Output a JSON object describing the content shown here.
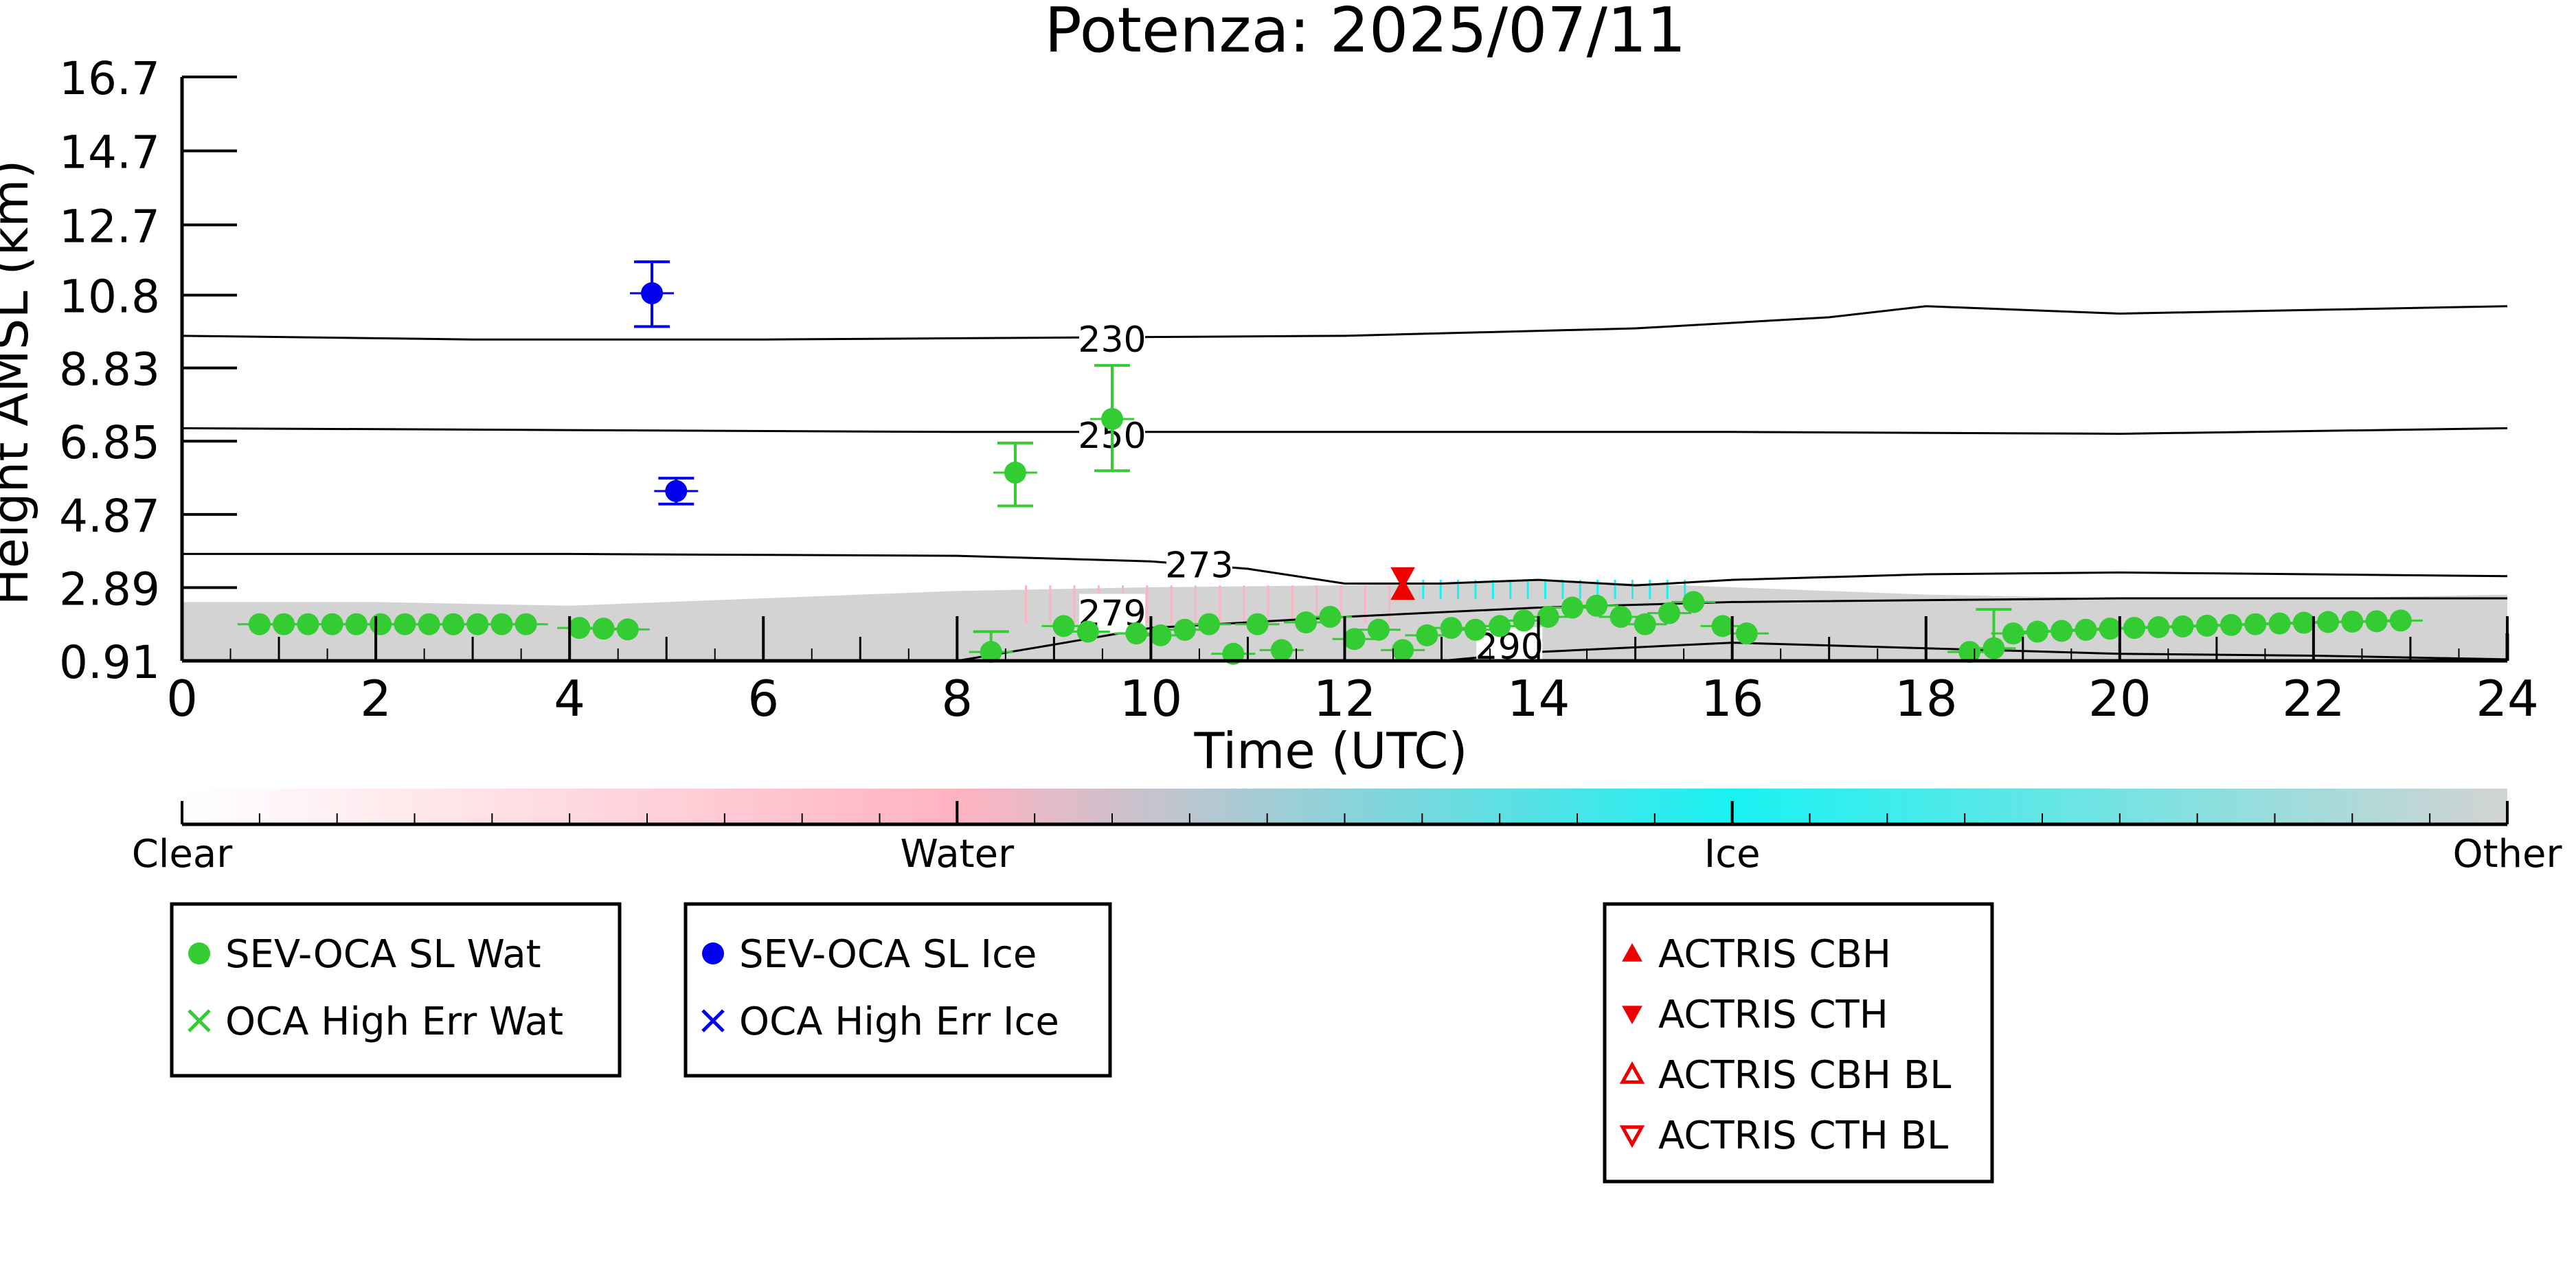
{
  "chart_data": {
    "type": "scatter",
    "title": "Potenza: 2025/07/11",
    "xlabel": "Time (UTC)",
    "ylabel": "Height AMSL (km)",
    "xlim": [
      0,
      24
    ],
    "ylim": [
      0.91,
      16.7
    ],
    "x_ticks": [
      "0",
      "2",
      "4",
      "6",
      "8",
      "10",
      "12",
      "14",
      "16",
      "18",
      "20",
      "22",
      "24"
    ],
    "y_ticks": [
      {
        "value": 0.91,
        "label": "0.91"
      },
      {
        "value": 2.89,
        "label": "2.89"
      },
      {
        "value": 4.87,
        "label": "4.87"
      },
      {
        "value": 6.85,
        "label": "6.85"
      },
      {
        "value": 8.83,
        "label": "8.83"
      },
      {
        "value": 10.8,
        "label": "10.8"
      },
      {
        "value": 12.7,
        "label": "12.7"
      },
      {
        "value": 14.7,
        "label": "14.7"
      },
      {
        "value": 16.7,
        "label": "16.7"
      }
    ],
    "colors": {
      "water": "#33cc33",
      "ice": "#0000ee",
      "actris": "#ee0000",
      "profile": "#d3d3d3",
      "contour": "#000000"
    },
    "contours": [
      {
        "label": "230",
        "label_at": [
          9.6,
          9.6
        ],
        "points": [
          [
            0,
            9.7
          ],
          [
            3,
            9.6
          ],
          [
            6,
            9.6
          ],
          [
            9,
            9.65
          ],
          [
            12,
            9.7
          ],
          [
            15,
            9.9
          ],
          [
            17,
            10.2
          ],
          [
            18,
            10.5
          ],
          [
            20,
            10.3
          ],
          [
            22,
            10.4
          ],
          [
            24,
            10.5
          ]
        ]
      },
      {
        "label": "250",
        "label_at": [
          9.6,
          7.0
        ],
        "points": [
          [
            0,
            7.2
          ],
          [
            4,
            7.15
          ],
          [
            8,
            7.1
          ],
          [
            12,
            7.1
          ],
          [
            16,
            7.1
          ],
          [
            20,
            7.05
          ],
          [
            24,
            7.2
          ]
        ]
      },
      {
        "label": "273",
        "label_at": [
          10.5,
          3.5
        ],
        "points": [
          [
            0,
            3.8
          ],
          [
            4,
            3.8
          ],
          [
            8,
            3.75
          ],
          [
            10,
            3.6
          ],
          [
            11,
            3.4
          ],
          [
            12,
            3.0
          ],
          [
            13,
            3.0
          ],
          [
            14,
            3.1
          ],
          [
            15,
            2.95
          ],
          [
            16,
            3.1
          ],
          [
            18,
            3.25
          ],
          [
            20,
            3.3
          ],
          [
            24,
            3.2
          ]
        ]
      },
      {
        "label": "279",
        "label_at": [
          9.6,
          2.2
        ],
        "points": [
          [
            8,
            0.91
          ],
          [
            9,
            1.35
          ],
          [
            10,
            1.8
          ],
          [
            12,
            2.1
          ],
          [
            14,
            2.35
          ],
          [
            16,
            2.5
          ],
          [
            20,
            2.6
          ],
          [
            24,
            2.6
          ]
        ]
      },
      {
        "label": "290",
        "label_at": [
          13.7,
          1.3
        ],
        "points": [
          [
            13,
            0.91
          ],
          [
            14,
            1.15
          ],
          [
            16,
            1.4
          ],
          [
            18,
            1.25
          ],
          [
            20,
            1.1
          ],
          [
            22,
            1.05
          ],
          [
            24,
            0.95
          ]
        ]
      }
    ],
    "series": [
      {
        "name": "SEV-OCA SL Wat",
        "marker": "dot",
        "color": "#33cc33",
        "points": [
          [
            0.8,
            1.9
          ],
          [
            1.05,
            1.9
          ],
          [
            1.3,
            1.9
          ],
          [
            1.55,
            1.9
          ],
          [
            1.8,
            1.9
          ],
          [
            2.05,
            1.9
          ],
          [
            2.3,
            1.9
          ],
          [
            2.55,
            1.9
          ],
          [
            2.8,
            1.9
          ],
          [
            3.05,
            1.9
          ],
          [
            3.3,
            1.9
          ],
          [
            3.55,
            1.9
          ],
          [
            4.1,
            1.8
          ],
          [
            4.35,
            1.78
          ],
          [
            4.6,
            1.76
          ],
          [
            8.35,
            1.15
          ],
          [
            8.6,
            6.0
          ],
          [
            9.1,
            1.85
          ],
          [
            9.35,
            1.7
          ],
          [
            9.6,
            7.45
          ],
          [
            9.85,
            1.65
          ],
          [
            10.1,
            1.6
          ],
          [
            10.35,
            1.75
          ],
          [
            10.6,
            1.9
          ],
          [
            10.85,
            1.1
          ],
          [
            11.1,
            1.9
          ],
          [
            11.35,
            1.2
          ],
          [
            11.6,
            1.95
          ],
          [
            11.85,
            2.1
          ],
          [
            12.1,
            1.5
          ],
          [
            12.35,
            1.75
          ],
          [
            12.6,
            1.2
          ],
          [
            12.85,
            1.6
          ],
          [
            13.1,
            1.8
          ],
          [
            13.35,
            1.75
          ],
          [
            13.6,
            1.85
          ],
          [
            13.85,
            2.0
          ],
          [
            14.1,
            2.1
          ],
          [
            14.35,
            2.35
          ],
          [
            14.6,
            2.4
          ],
          [
            14.85,
            2.1
          ],
          [
            15.1,
            1.9
          ],
          [
            15.35,
            2.2
          ],
          [
            15.6,
            2.5
          ],
          [
            15.9,
            1.85
          ],
          [
            16.15,
            1.65
          ],
          [
            18.45,
            1.15
          ],
          [
            18.7,
            1.25
          ],
          [
            18.9,
            1.65
          ],
          [
            19.15,
            1.7
          ],
          [
            19.4,
            1.72
          ],
          [
            19.65,
            1.75
          ],
          [
            19.9,
            1.78
          ],
          [
            20.15,
            1.8
          ],
          [
            20.4,
            1.82
          ],
          [
            20.65,
            1.84
          ],
          [
            20.9,
            1.86
          ],
          [
            21.15,
            1.88
          ],
          [
            21.4,
            1.9
          ],
          [
            21.65,
            1.92
          ],
          [
            21.9,
            1.94
          ],
          [
            22.15,
            1.96
          ],
          [
            22.4,
            1.97
          ],
          [
            22.65,
            1.98
          ],
          [
            22.9,
            2.0
          ]
        ],
        "errorbars": [
          {
            "x": 8.35,
            "y": 1.15,
            "lo": 0.91,
            "hi": 1.7
          },
          {
            "x": 8.6,
            "y": 6.0,
            "lo": 5.1,
            "hi": 6.8
          },
          {
            "x": 9.6,
            "y": 7.45,
            "lo": 6.05,
            "hi": 8.9
          },
          {
            "x": 18.7,
            "y": 1.25,
            "lo": 0.91,
            "hi": 2.3
          }
        ]
      },
      {
        "name": "OCA High Err Wat",
        "marker": "x",
        "color": "#33cc33",
        "points": []
      },
      {
        "name": "SEV-OCA SL Ice",
        "marker": "dot",
        "color": "#0000ee",
        "points": [
          [
            4.85,
            10.85
          ],
          [
            5.1,
            5.5
          ]
        ],
        "errorbars": [
          {
            "x": 4.85,
            "y": 10.85,
            "lo": 9.95,
            "hi": 11.7
          },
          {
            "x": 5.1,
            "y": 5.5,
            "lo": 5.15,
            "hi": 5.85
          }
        ]
      },
      {
        "name": "OCA High Err Ice",
        "marker": "x",
        "color": "#0000ee",
        "points": []
      },
      {
        "name": "ACTRIS CBH",
        "marker": "triangle-up",
        "color": "#ee0000",
        "points": [
          [
            12.6,
            2.82
          ]
        ]
      },
      {
        "name": "ACTRIS CTH",
        "marker": "triangle-down",
        "color": "#ee0000",
        "points": [
          [
            12.6,
            3.18
          ]
        ]
      },
      {
        "name": "ACTRIS CBH BL",
        "marker": "triangle-up-open",
        "color": "#ee0000",
        "points": []
      },
      {
        "name": "ACTRIS CTH BL",
        "marker": "triangle-down-open",
        "color": "#ee0000",
        "points": []
      }
    ],
    "profile_band": {
      "x": [
        0,
        24
      ],
      "top": [
        2.5,
        2.5,
        2.4,
        2.6,
        2.8,
        2.9,
        2.95,
        3.1,
        2.9,
        2.7,
        2.6,
        2.6,
        2.7
      ],
      "bottom": 0.91
    },
    "colorbar": {
      "labels": [
        "Clear",
        "Water",
        "Ice",
        "Other"
      ],
      "stops": [
        "#ffffff",
        "#ffb3c1",
        "#19f2f2",
        "#d3d3d3"
      ]
    },
    "legends": [
      {
        "entries": [
          0,
          1
        ]
      },
      {
        "entries": [
          2,
          3
        ]
      },
      {
        "entries": [
          4,
          5,
          6,
          7
        ]
      }
    ]
  }
}
